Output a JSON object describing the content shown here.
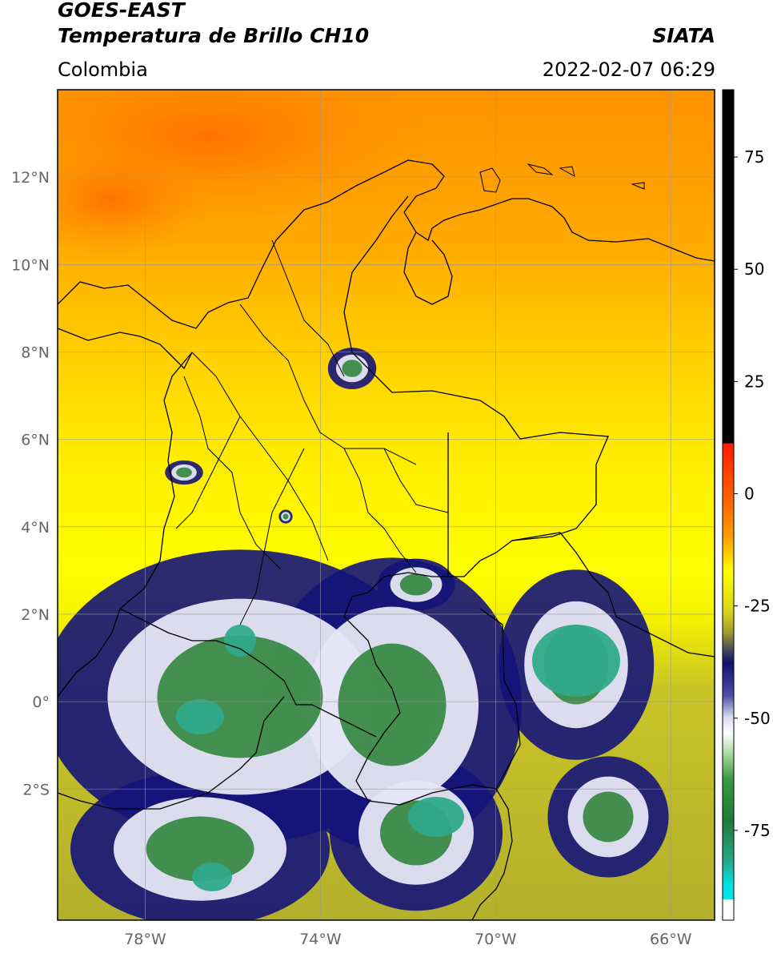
{
  "header": {
    "satellite": "GOES-EAST",
    "product": "Temperatura de Brillo CH10",
    "agency": "SIATA",
    "region": "Colombia",
    "timestamp": "2022-02-07 06:29"
  },
  "map": {
    "lon_range": [
      -80,
      -65
    ],
    "lat_range": [
      -5,
      14
    ],
    "lat_ticks": [
      {
        "value": 12,
        "label": "12°N"
      },
      {
        "value": 10,
        "label": "10°N"
      },
      {
        "value": 8,
        "label": "8°N"
      },
      {
        "value": 6,
        "label": "6°N"
      },
      {
        "value": 4,
        "label": "4°N"
      },
      {
        "value": 2,
        "label": "2°N"
      },
      {
        "value": 0,
        "label": "0°"
      },
      {
        "value": -2,
        "label": "2°S"
      }
    ],
    "lon_ticks": [
      {
        "value": -78,
        "label": "78°W"
      },
      {
        "value": -74,
        "label": "74°W"
      },
      {
        "value": -70,
        "label": "70°W"
      },
      {
        "value": -66,
        "label": "66°W"
      }
    ],
    "grid": true
  },
  "colorbar": {
    "range": [
      -95,
      90
    ],
    "ticks": [
      {
        "value": 75,
        "label": "75"
      },
      {
        "value": 50,
        "label": "50"
      },
      {
        "value": 25,
        "label": "25"
      },
      {
        "value": 0,
        "label": "0"
      },
      {
        "value": -25,
        "label": "-25"
      },
      {
        "value": -50,
        "label": "-50"
      },
      {
        "value": -75,
        "label": "-75"
      }
    ],
    "colors": {
      "black": "#000000",
      "red": "#ff1a00",
      "orange": "#ff8c00",
      "yellow": "#ffff00",
      "olive": "#b5b52a",
      "navy": "#14147a",
      "white": "#ffffff",
      "green": "#2e8b3c",
      "teal": "#36c9a8",
      "cyan": "#00e5e5"
    }
  }
}
